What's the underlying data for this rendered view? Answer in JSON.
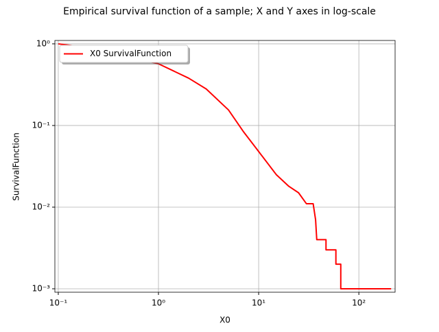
{
  "chart_data": {
    "type": "line",
    "title": "Empirical survival function of a sample; X and Y axes in log-scale",
    "xlabel": "X0",
    "ylabel": "SurvivalFunction",
    "x": [
      0.1,
      0.2,
      0.5,
      1,
      2,
      3,
      5,
      7,
      10,
      15,
      20,
      25,
      30,
      35,
      37,
      38,
      47,
      47,
      59,
      59,
      66,
      66,
      210
    ],
    "series": [
      {
        "name": "X0 SurvivalFunction",
        "color": "#ff0000",
        "values": [
          1.0,
          0.9,
          0.7,
          0.57,
          0.38,
          0.28,
          0.155,
          0.085,
          0.048,
          0.025,
          0.018,
          0.015,
          0.011,
          0.011,
          0.007,
          0.004,
          0.004,
          0.003,
          0.003,
          0.002,
          0.002,
          0.001,
          0.001
        ]
      }
    ],
    "xlim": [
      0.0925,
      230
    ],
    "ylim": [
      0.000908,
      1.1
    ],
    "xscale": "log",
    "yscale": "log",
    "xticks": [
      {
        "value": 0.1,
        "label": "10⁻¹"
      },
      {
        "value": 1,
        "label": "10⁰"
      },
      {
        "value": 10,
        "label": "10¹"
      },
      {
        "value": 100,
        "label": "10²"
      }
    ],
    "yticks": [
      {
        "value": 0.001,
        "label": "10⁻³"
      },
      {
        "value": 0.01,
        "label": "10⁻²"
      },
      {
        "value": 0.1,
        "label": "10⁻¹"
      },
      {
        "value": 1,
        "label": "10⁰"
      }
    ],
    "grid": true,
    "legend": "upper left"
  }
}
